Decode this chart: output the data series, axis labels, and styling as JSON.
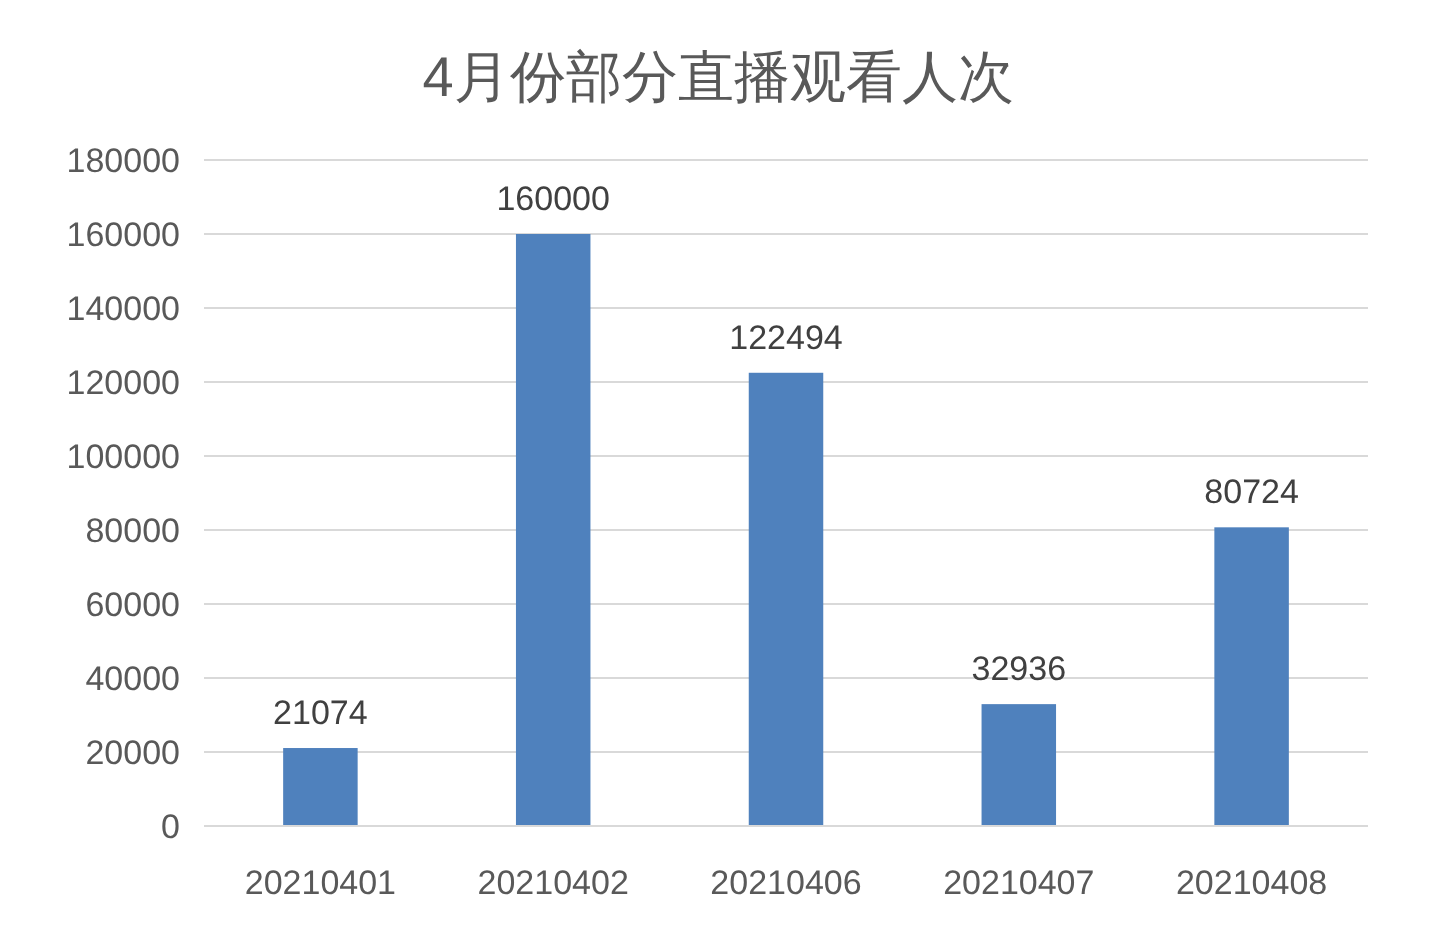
{
  "chart_data": {
    "type": "bar",
    "title": "4月份部分直播观看人次",
    "categories": [
      "20210401",
      "20210402",
      "20210406",
      "20210407",
      "20210408"
    ],
    "values": [
      21074,
      160000,
      122494,
      32936,
      80724
    ],
    "color": "#4f81bd",
    "ylim": [
      0,
      180000
    ],
    "yticks": [
      0,
      20000,
      40000,
      60000,
      80000,
      100000,
      120000,
      140000,
      160000,
      180000
    ],
    "grid": "y",
    "data_labels": true
  }
}
